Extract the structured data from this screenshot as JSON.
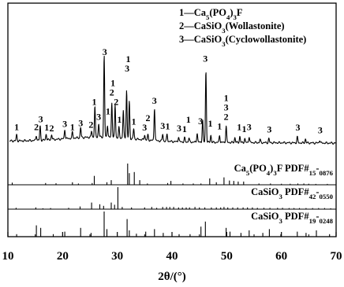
{
  "chart_data": {
    "type": "line",
    "xlabel": "2θ/(°)",
    "xlim": [
      10,
      70
    ],
    "x_ticks": [
      10,
      20,
      30,
      40,
      50,
      60,
      70
    ],
    "grid": false,
    "legend_position": "top-right",
    "legend": [
      {
        "index": "1",
        "label": "Ca5(PO4)3F"
      },
      {
        "index": "2",
        "label": "CaSiO3(Wollastonite)"
      },
      {
        "index": "3",
        "label": "CaSiO3(Cyclowollastonite)"
      }
    ],
    "pattern": {
      "baseline": 0.22,
      "peaks": [
        {
          "x": 11.6,
          "h": 0.06
        },
        {
          "x": 15.2,
          "h": 0.05
        },
        {
          "x": 15.9,
          "h": 0.14
        },
        {
          "x": 17.0,
          "h": 0.06
        },
        {
          "x": 18.0,
          "h": 0.05
        },
        {
          "x": 20.4,
          "h": 0.09
        },
        {
          "x": 21.8,
          "h": 0.06
        },
        {
          "x": 23.3,
          "h": 0.1
        },
        {
          "x": 25.3,
          "h": 0.06
        },
        {
          "x": 25.9,
          "h": 0.3
        },
        {
          "x": 26.6,
          "h": 0.13
        },
        {
          "x": 27.6,
          "h": 0.8
        },
        {
          "x": 28.2,
          "h": 0.12
        },
        {
          "x": 29.0,
          "h": 0.34
        },
        {
          "x": 29.6,
          "h": 0.32
        },
        {
          "x": 30.3,
          "h": 0.1
        },
        {
          "x": 31.1,
          "h": 0.27
        },
        {
          "x": 31.7,
          "h": 0.47
        },
        {
          "x": 32.2,
          "h": 0.36
        },
        {
          "x": 33.0,
          "h": 0.1
        },
        {
          "x": 35.0,
          "h": 0.05
        },
        {
          "x": 35.6,
          "h": 0.05
        },
        {
          "x": 36.8,
          "h": 0.32
        },
        {
          "x": 38.3,
          "h": 0.07
        },
        {
          "x": 39.1,
          "h": 0.07
        },
        {
          "x": 41.2,
          "h": 0.05
        },
        {
          "x": 42.3,
          "h": 0.04
        },
        {
          "x": 43.1,
          "h": 0.04
        },
        {
          "x": 44.6,
          "h": 0.09
        },
        {
          "x": 45.6,
          "h": 0.22
        },
        {
          "x": 46.2,
          "h": 0.7
        },
        {
          "x": 47.1,
          "h": 0.07
        },
        {
          "x": 48.7,
          "h": 0.07
        },
        {
          "x": 49.9,
          "h": 0.16
        },
        {
          "x": 51.5,
          "h": 0.05
        },
        {
          "x": 52.4,
          "h": 0.06
        },
        {
          "x": 53.3,
          "h": 0.04
        },
        {
          "x": 54.1,
          "h": 0.06
        },
        {
          "x": 56.1,
          "h": 0.03
        },
        {
          "x": 57.7,
          "h": 0.04
        },
        {
          "x": 62.9,
          "h": 0.06
        },
        {
          "x": 64.4,
          "h": 0.04
        },
        {
          "x": 67.0,
          "h": 0.03
        }
      ]
    },
    "peak_labels": [
      {
        "x": 11.6,
        "text": "1"
      },
      {
        "x": 15.2,
        "text": "2"
      },
      {
        "x": 16.0,
        "text": "3"
      },
      {
        "x": 17.1,
        "text": "1"
      },
      {
        "x": 18.0,
        "text": "2"
      },
      {
        "x": 20.4,
        "text": "3"
      },
      {
        "x": 21.8,
        "text": "1"
      },
      {
        "x": 23.3,
        "text": "3"
      },
      {
        "x": 25.2,
        "text": "2"
      },
      {
        "x": 25.8,
        "text": "1"
      },
      {
        "x": 26.6,
        "text": "3"
      },
      {
        "x": 27.7,
        "text": "3"
      },
      {
        "x": 28.3,
        "text": "1"
      },
      {
        "x": 29.0,
        "text": "2"
      },
      {
        "x": 29.2,
        "text": "1"
      },
      {
        "x": 29.8,
        "text": "2"
      },
      {
        "x": 30.4,
        "text": "1"
      },
      {
        "x": 31.8,
        "text": "3"
      },
      {
        "x": 32.0,
        "text": "1"
      },
      {
        "x": 33.0,
        "text": "1"
      },
      {
        "x": 35.0,
        "text": "3"
      },
      {
        "x": 35.6,
        "text": "2"
      },
      {
        "x": 36.8,
        "text": "3"
      },
      {
        "x": 38.3,
        "text": "3"
      },
      {
        "x": 39.2,
        "text": "1"
      },
      {
        "x": 41.3,
        "text": "3"
      },
      {
        "x": 42.3,
        "text": "1"
      },
      {
        "x": 43.0,
        "text": "1"
      },
      {
        "x": 45.2,
        "text": "3"
      },
      {
        "x": 46.1,
        "text": "3"
      },
      {
        "x": 47.0,
        "text": "1"
      },
      {
        "x": 48.7,
        "text": "1"
      },
      {
        "x": 49.9,
        "text": "2"
      },
      {
        "x": 49.9,
        "text": "3"
      },
      {
        "x": 49.9,
        "text": "1"
      },
      {
        "x": 52.3,
        "text": "1"
      },
      {
        "x": 53.2,
        "text": "1"
      },
      {
        "x": 54.1,
        "text": "3"
      },
      {
        "x": 57.8,
        "text": "3"
      },
      {
        "x": 63.0,
        "text": "3"
      },
      {
        "x": 67.1,
        "text": "3"
      }
    ],
    "references": [
      {
        "label": "Ca5(PO4)3F PDF#15-0876",
        "sticks": [
          {
            "x": 10.8,
            "i": 0.1
          },
          {
            "x": 16.9,
            "i": 0.08
          },
          {
            "x": 18.8,
            "i": 0.07
          },
          {
            "x": 21.8,
            "i": 0.12
          },
          {
            "x": 22.9,
            "i": 0.06
          },
          {
            "x": 25.4,
            "i": 0.08
          },
          {
            "x": 25.8,
            "i": 0.42
          },
          {
            "x": 28.1,
            "i": 0.12
          },
          {
            "x": 28.9,
            "i": 0.22
          },
          {
            "x": 31.9,
            "i": 1.0
          },
          {
            "x": 32.2,
            "i": 0.55
          },
          {
            "x": 33.1,
            "i": 0.6
          },
          {
            "x": 34.1,
            "i": 0.22
          },
          {
            "x": 35.5,
            "i": 0.06
          },
          {
            "x": 39.2,
            "i": 0.08
          },
          {
            "x": 39.8,
            "i": 0.18
          },
          {
            "x": 42.0,
            "i": 0.06
          },
          {
            "x": 43.9,
            "i": 0.06
          },
          {
            "x": 45.3,
            "i": 0.06
          },
          {
            "x": 46.9,
            "i": 0.3
          },
          {
            "x": 48.1,
            "i": 0.12
          },
          {
            "x": 49.5,
            "i": 0.35
          },
          {
            "x": 50.5,
            "i": 0.2
          },
          {
            "x": 51.3,
            "i": 0.18
          },
          {
            "x": 52.1,
            "i": 0.15
          },
          {
            "x": 53.1,
            "i": 0.15
          },
          {
            "x": 55.9,
            "i": 0.06
          },
          {
            "x": 58.0,
            "i": 0.06
          },
          {
            "x": 60.0,
            "i": 0.05
          },
          {
            "x": 61.6,
            "i": 0.05
          },
          {
            "x": 63.0,
            "i": 0.06
          },
          {
            "x": 64.1,
            "i": 0.06
          },
          {
            "x": 65.0,
            "i": 0.05
          },
          {
            "x": 66.3,
            "i": 0.04
          },
          {
            "x": 68.4,
            "i": 0.04
          }
        ]
      },
      {
        "label": "CaSiO3 PDF#42-0550",
        "sticks": [
          {
            "x": 11.5,
            "i": 0.06
          },
          {
            "x": 15.1,
            "i": 0.08
          },
          {
            "x": 16.4,
            "i": 0.04
          },
          {
            "x": 17.8,
            "i": 0.05
          },
          {
            "x": 21.1,
            "i": 0.06
          },
          {
            "x": 23.2,
            "i": 0.12
          },
          {
            "x": 25.3,
            "i": 0.3
          },
          {
            "x": 26.8,
            "i": 0.22
          },
          {
            "x": 27.5,
            "i": 0.15
          },
          {
            "x": 28.9,
            "i": 0.3
          },
          {
            "x": 29.5,
            "i": 0.2
          },
          {
            "x": 30.1,
            "i": 1.0
          },
          {
            "x": 30.9,
            "i": 0.1
          },
          {
            "x": 32.6,
            "i": 0.08
          },
          {
            "x": 35.0,
            "i": 0.08
          },
          {
            "x": 36.3,
            "i": 0.1
          },
          {
            "x": 37.2,
            "i": 0.06
          },
          {
            "x": 38.3,
            "i": 0.1
          },
          {
            "x": 39.0,
            "i": 0.1
          },
          {
            "x": 39.6,
            "i": 0.1
          },
          {
            "x": 40.3,
            "i": 0.1
          },
          {
            "x": 41.2,
            "i": 0.08
          },
          {
            "x": 41.9,
            "i": 0.08
          },
          {
            "x": 42.6,
            "i": 0.08
          },
          {
            "x": 43.2,
            "i": 0.08
          },
          {
            "x": 44.2,
            "i": 0.1
          },
          {
            "x": 45.0,
            "i": 0.08
          },
          {
            "x": 46.0,
            "i": 0.08
          },
          {
            "x": 47.2,
            "i": 0.08
          },
          {
            "x": 48.1,
            "i": 0.08
          },
          {
            "x": 48.9,
            "i": 0.08
          },
          {
            "x": 49.5,
            "i": 0.1
          },
          {
            "x": 50.2,
            "i": 0.08
          },
          {
            "x": 51.1,
            "i": 0.08
          },
          {
            "x": 52.0,
            "i": 0.08
          },
          {
            "x": 53.0,
            "i": 0.08
          },
          {
            "x": 53.8,
            "i": 0.08
          },
          {
            "x": 54.7,
            "i": 0.08
          },
          {
            "x": 55.6,
            "i": 0.06
          },
          {
            "x": 56.8,
            "i": 0.06
          },
          {
            "x": 57.9,
            "i": 0.06
          },
          {
            "x": 59.3,
            "i": 0.06
          },
          {
            "x": 60.2,
            "i": 0.06
          },
          {
            "x": 61.4,
            "i": 0.05
          },
          {
            "x": 62.3,
            "i": 0.05
          },
          {
            "x": 63.3,
            "i": 0.05
          },
          {
            "x": 64.5,
            "i": 0.05
          },
          {
            "x": 65.7,
            "i": 0.05
          },
          {
            "x": 66.8,
            "i": 0.05
          },
          {
            "x": 67.9,
            "i": 0.05
          },
          {
            "x": 69.0,
            "i": 0.04
          }
        ]
      },
      {
        "label": "CaSiO3 PDF#19-0248",
        "sticks": [
          {
            "x": 11.6,
            "i": 0.1
          },
          {
            "x": 15.2,
            "i": 0.45
          },
          {
            "x": 16.0,
            "i": 0.35
          },
          {
            "x": 18.3,
            "i": 0.1
          },
          {
            "x": 20.4,
            "i": 0.2
          },
          {
            "x": 23.3,
            "i": 0.35
          },
          {
            "x": 25.2,
            "i": 0.15
          },
          {
            "x": 27.6,
            "i": 1.0
          },
          {
            "x": 28.1,
            "i": 0.3
          },
          {
            "x": 31.8,
            "i": 0.7
          },
          {
            "x": 32.2,
            "i": 0.25
          },
          {
            "x": 33.5,
            "i": 0.12
          },
          {
            "x": 35.2,
            "i": 0.2
          },
          {
            "x": 36.8,
            "i": 0.3
          },
          {
            "x": 38.4,
            "i": 0.15
          },
          {
            "x": 41.3,
            "i": 0.1
          },
          {
            "x": 43.3,
            "i": 0.1
          },
          {
            "x": 45.3,
            "i": 0.4
          },
          {
            "x": 46.1,
            "i": 0.6
          },
          {
            "x": 49.9,
            "i": 0.35
          },
          {
            "x": 50.6,
            "i": 0.2
          },
          {
            "x": 52.6,
            "i": 0.15
          },
          {
            "x": 54.1,
            "i": 0.25
          },
          {
            "x": 56.6,
            "i": 0.15
          },
          {
            "x": 57.8,
            "i": 0.3
          },
          {
            "x": 59.9,
            "i": 0.1
          },
          {
            "x": 62.9,
            "i": 0.2
          },
          {
            "x": 64.5,
            "i": 0.15
          },
          {
            "x": 66.4,
            "i": 0.25
          },
          {
            "x": 68.8,
            "i": 0.1
          }
        ]
      }
    ]
  }
}
